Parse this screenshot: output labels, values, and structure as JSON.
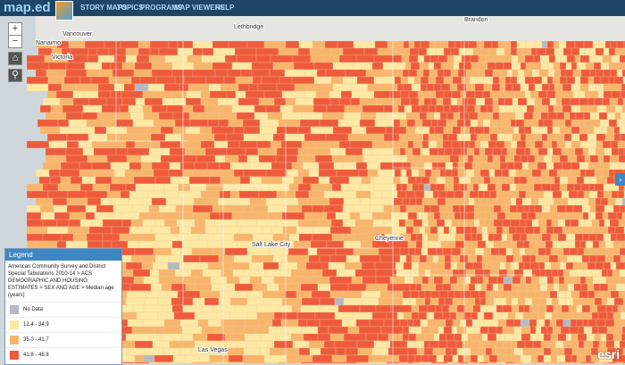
{
  "header": {
    "logo": "map.ed",
    "nav": [
      "STORY MAPS",
      "TOPICS",
      "PROGRAMS",
      "MAP VIEWERS",
      "HELP"
    ]
  },
  "places": [
    "Vancouver",
    "Nanaimo",
    "Victoria",
    "Lethbridge",
    "Brandon",
    "Salt Lake City",
    "Cheyenne",
    "Las Vegas"
  ],
  "controls": {
    "zoom_in": "+",
    "zoom_out": "−"
  },
  "legend": {
    "title": "Legend",
    "description": "American Community Survey and District Special Tabulations 2010-14 > ACS DEMOGRAPHIC AND HOUSING ESTIMATES > SEX AND AGE > Median age (years)",
    "items": [
      {
        "label": "No Data",
        "color": "#b4bac4"
      },
      {
        "label": "12.4 - 34.9",
        "color": "#fde9a4"
      },
      {
        "label": "35.0 - 41.7",
        "color": "#f8b56c"
      },
      {
        "label": "41.8 - 48.8",
        "color": "#ee5b3b"
      }
    ]
  },
  "attribution": "esri"
}
